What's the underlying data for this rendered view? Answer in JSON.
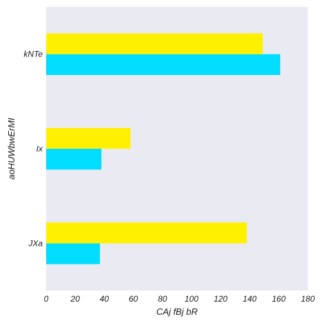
{
  "chart_data": {
    "type": "bar",
    "orientation": "horizontal",
    "categories": [
      "JXa",
      "Ix",
      "kNTe"
    ],
    "series": [
      {
        "values": [
          37,
          38,
          161
        ],
        "color": "#00DDFF"
      },
      {
        "values": [
          138,
          58,
          149
        ],
        "color": "#FFF000"
      }
    ],
    "xlabel": "CAj fBj bR",
    "ylabel": "aoHUWbwErMI",
    "xlim": [
      0,
      180
    ],
    "xticks": [
      0,
      20,
      40,
      60,
      80,
      100,
      120,
      140,
      160,
      180
    ],
    "grid": false,
    "plot_background": "#EAEAF2"
  }
}
